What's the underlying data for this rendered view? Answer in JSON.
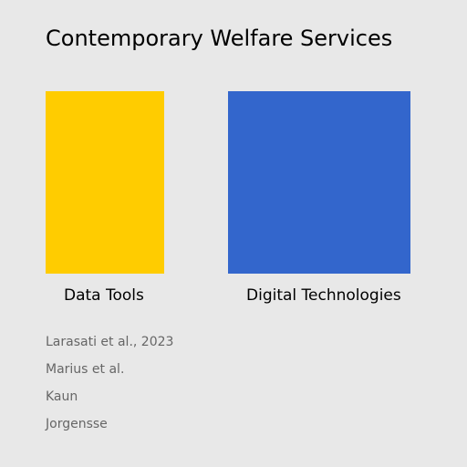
{
  "title": "Contemporary Welfare Services",
  "blocks": [
    {
      "label": "Data Tools",
      "color": "#ffcc00"
    },
    {
      "label": "Digital Technologies",
      "color": "#3366cc"
    }
  ],
  "references": [
    "Larasati et al., 2023",
    "Marius et al.",
    "Kaun",
    "Jorgensse"
  ],
  "colors": {
    "background": "#e8e8e8",
    "title_text": "#000000",
    "reference_text": "#666666"
  }
}
